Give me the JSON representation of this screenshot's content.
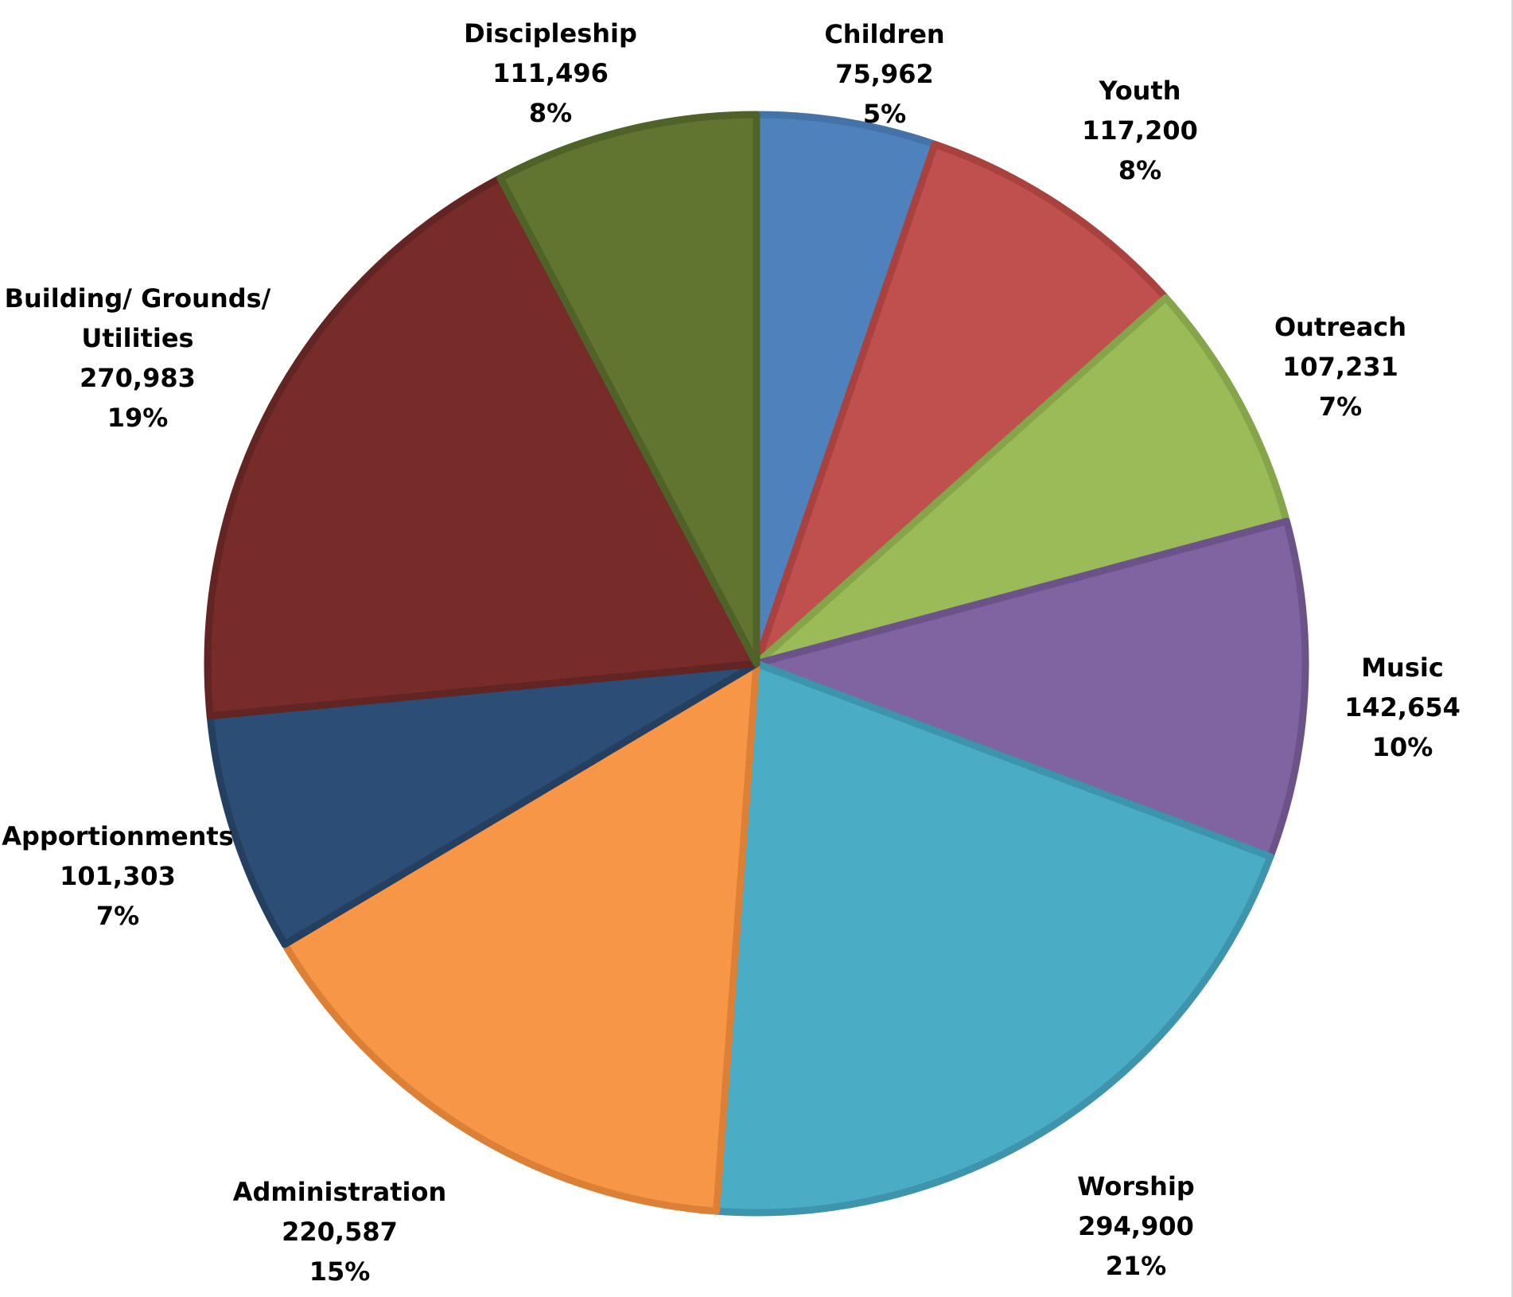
{
  "chart_data": {
    "type": "pie",
    "title": "",
    "start_angle_deg": 0,
    "direction": "clockwise",
    "legend": "none",
    "slices": [
      {
        "label": "Children",
        "value": 75962,
        "value_text": "75,962",
        "percent_text": "5%",
        "color": "#4F81BD",
        "border": "#4572A7"
      },
      {
        "label": "Youth",
        "value": 117200,
        "value_text": "117,200",
        "percent_text": "8%",
        "color": "#C0504D",
        "border": "#A9413F"
      },
      {
        "label": "Outreach",
        "value": 107231,
        "value_text": "107,231",
        "percent_text": "7%",
        "color": "#9BBB59",
        "border": "#86A44A"
      },
      {
        "label": "Music",
        "value": 142654,
        "value_text": "142,654",
        "percent_text": "10%",
        "color": "#8064A2",
        "border": "#6B5289"
      },
      {
        "label": "Worship",
        "value": 294900,
        "value_text": "294,900",
        "percent_text": "21%",
        "color": "#4BACC6",
        "border": "#3D95AD"
      },
      {
        "label": "Administration",
        "value": 220587,
        "value_text": "220,587",
        "percent_text": "15%",
        "color": "#F79646",
        "border": "#DB8036"
      },
      {
        "label": "Apportionments",
        "value": 101303,
        "value_text": "101,303",
        "percent_text": "7%",
        "color": "#2C4D75",
        "border": "#243F60"
      },
      {
        "label": "Building/ Grounds/ Utilities",
        "label_lines": [
          "Building/ Grounds/",
          "Utilities"
        ],
        "value": 270983,
        "value_text": "270,983",
        "percent_text": "19%",
        "color": "#772C2A",
        "border": "#632523"
      },
      {
        "label": "Discipleship",
        "value": 111496,
        "value_text": "111,496",
        "percent_text": "8%",
        "color": "#5F7530",
        "border": "#4F6228"
      }
    ]
  }
}
